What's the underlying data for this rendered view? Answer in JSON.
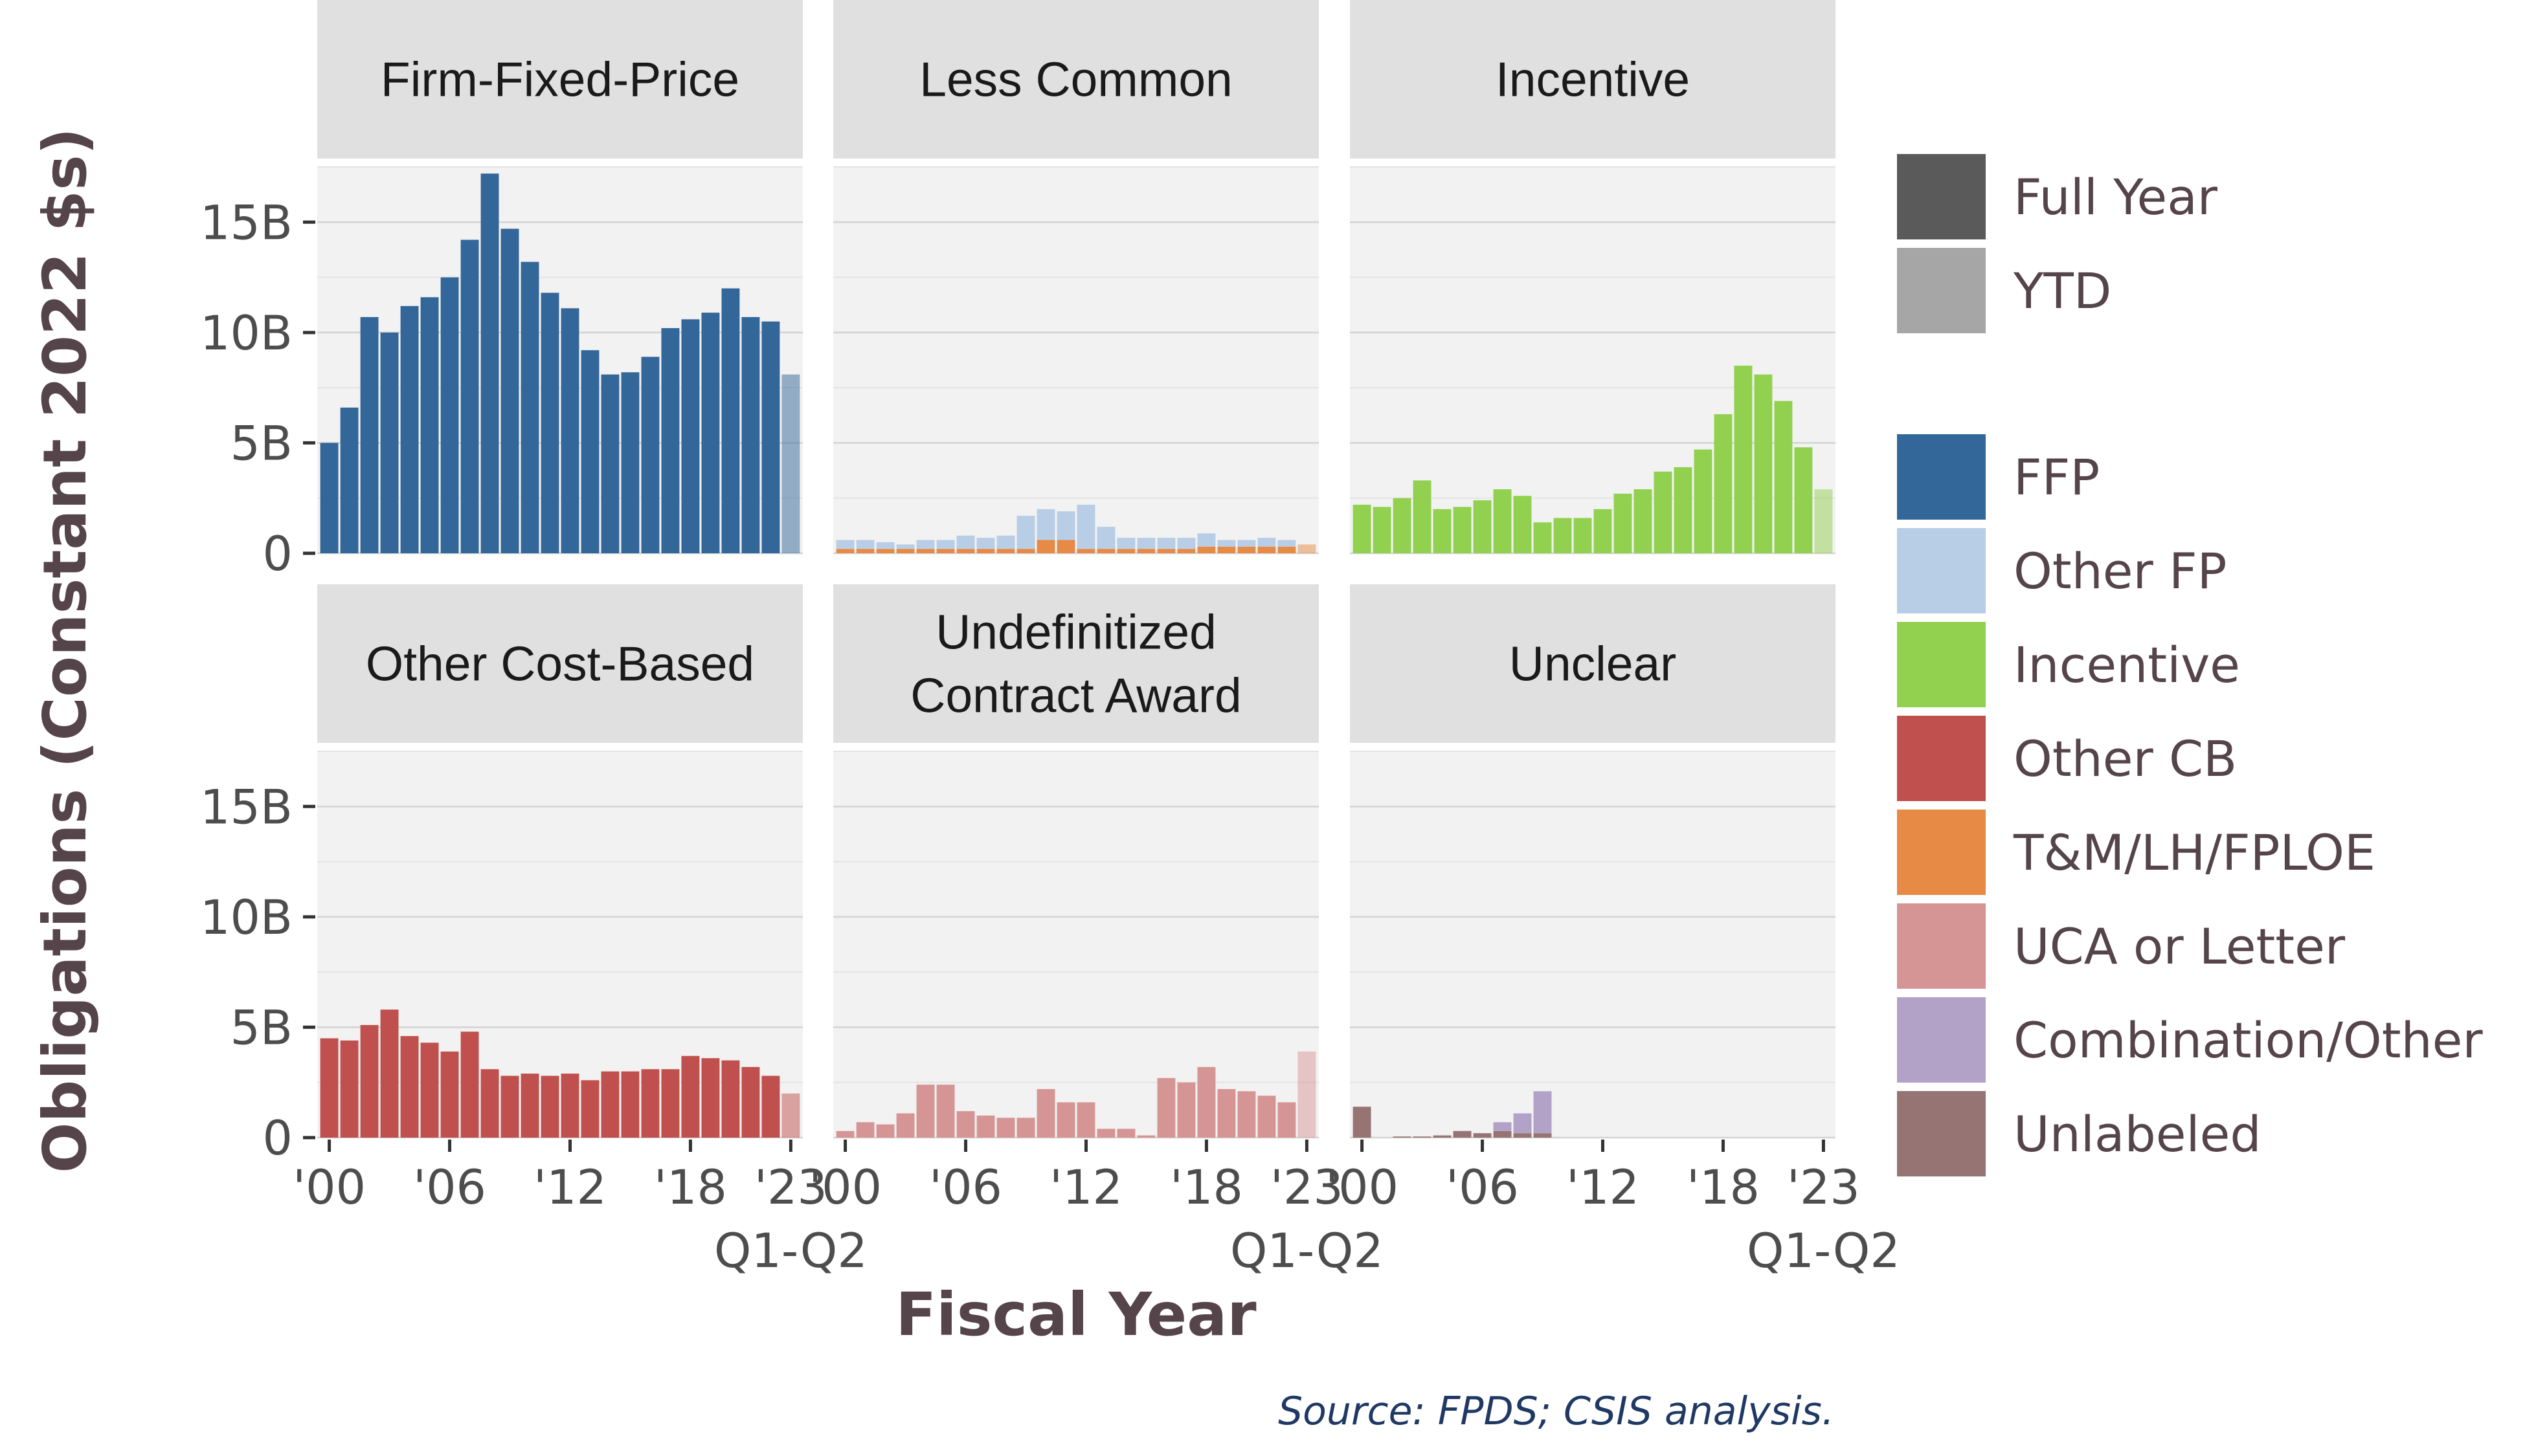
{
  "chart_data": {
    "type": "bar",
    "facet_layout": "2x3",
    "xlabel": "Fiscal Year",
    "ylabel": "Obligations (Constant 2022 $s)",
    "ylim": [
      0,
      17500000000
    ],
    "yticks": [
      0,
      5000000000,
      10000000000,
      15000000000
    ],
    "ytick_labels": [
      "0",
      "5B",
      "10B",
      "15B"
    ],
    "years": [
      2000,
      2001,
      2002,
      2003,
      2004,
      2005,
      2006,
      2007,
      2008,
      2009,
      2010,
      2011,
      2012,
      2013,
      2014,
      2015,
      2016,
      2017,
      2018,
      2019,
      2020,
      2021,
      2022,
      2023
    ],
    "xticks": [
      {
        "year": 2000,
        "label": "'00"
      },
      {
        "year": 2006,
        "label": "'06"
      },
      {
        "year": 2012,
        "label": "'12"
      },
      {
        "year": 2018,
        "label": "'18"
      },
      {
        "year": 2023,
        "label": "'23"
      }
    ],
    "ytd_label": "Q1-Q2",
    "grid": true,
    "legend_position": "right",
    "panels": [
      {
        "title": [
          "Firm-Fixed-Price"
        ],
        "stacks": [
          {
            "series": "FFP",
            "values": [
              5.0,
              6.6,
              10.7,
              10.0,
              11.2,
              11.6,
              12.5,
              14.2,
              17.2,
              14.7,
              13.2,
              11.8,
              11.1,
              9.2,
              8.1,
              8.2,
              8.9,
              10.2,
              10.6,
              10.9,
              12.0,
              10.7,
              10.5,
              8.1
            ]
          }
        ]
      },
      {
        "title": [
          "Less Common"
        ],
        "stacks": [
          {
            "series": "T&M/LH/FPLOE",
            "values": [
              0.2,
              0.2,
              0.2,
              0.2,
              0.2,
              0.2,
              0.2,
              0.2,
              0.2,
              0.2,
              0.6,
              0.6,
              0.2,
              0.2,
              0.2,
              0.2,
              0.2,
              0.2,
              0.3,
              0.3,
              0.3,
              0.3,
              0.3,
              0.4
            ]
          },
          {
            "series": "Other FP",
            "values": [
              0.4,
              0.4,
              0.3,
              0.2,
              0.4,
              0.4,
              0.6,
              0.5,
              0.6,
              1.5,
              1.4,
              1.3,
              2.0,
              1.0,
              0.5,
              0.5,
              0.5,
              0.5,
              0.6,
              0.3,
              0.3,
              0.4,
              0.3,
              0.0
            ]
          }
        ]
      },
      {
        "title": [
          "Incentive"
        ],
        "stacks": [
          {
            "series": "Incentive",
            "values": [
              2.2,
              2.1,
              2.5,
              3.3,
              2.0,
              2.1,
              2.4,
              2.9,
              2.6,
              1.4,
              1.6,
              1.6,
              2.0,
              2.7,
              2.9,
              3.7,
              3.9,
              4.7,
              6.3,
              8.5,
              8.1,
              6.9,
              4.8,
              2.9
            ]
          }
        ]
      },
      {
        "title": [
          "Other Cost-Based"
        ],
        "stacks": [
          {
            "series": "Other CB",
            "values": [
              4.5,
              4.4,
              5.1,
              5.8,
              4.6,
              4.3,
              3.9,
              4.8,
              3.1,
              2.8,
              2.9,
              2.8,
              2.9,
              2.6,
              3.0,
              3.0,
              3.1,
              3.1,
              3.7,
              3.6,
              3.5,
              3.2,
              2.8,
              2.0
            ]
          }
        ]
      },
      {
        "title": [
          "Undefinitized",
          "Contract Award"
        ],
        "stacks": [
          {
            "series": "UCA or Letter",
            "values": [
              0.3,
              0.7,
              0.6,
              1.1,
              2.4,
              2.4,
              1.2,
              1.0,
              0.9,
              0.9,
              2.2,
              1.6,
              1.6,
              0.4,
              0.4,
              0.1,
              2.7,
              2.5,
              3.2,
              2.2,
              2.1,
              1.9,
              1.6,
              3.9
            ]
          }
        ]
      },
      {
        "title": [
          "Unclear"
        ],
        "stacks": [
          {
            "series": "Unlabeled",
            "values": [
              1.4,
              0.0,
              0.05,
              0.05,
              0.1,
              0.3,
              0.2,
              0.3,
              0.2,
              0.2,
              0.0,
              0.0,
              0.0,
              0.0,
              0.0,
              0.0,
              0.0,
              0.0,
              0.0,
              0.0,
              0.0,
              0.0,
              0.0,
              0.0
            ]
          },
          {
            "series": "Combination/Other",
            "values": [
              0.0,
              0.0,
              0.0,
              0.0,
              0.0,
              0.0,
              0.0,
              0.4,
              0.9,
              1.9,
              0.0,
              0.0,
              0.0,
              0.0,
              0.0,
              0.0,
              0.0,
              0.0,
              0.0,
              0.0,
              0.0,
              0.0,
              0.0,
              0.0
            ]
          }
        ]
      }
    ],
    "legend_groups": [
      [
        {
          "name": "Full Year",
          "color": "#5a5a5a"
        },
        {
          "name": "YTD",
          "color": "#a6a6a6"
        }
      ],
      [
        {
          "name": "FFP",
          "color": "#336699"
        },
        {
          "name": "Other FP",
          "color": "#b8cde6"
        },
        {
          "name": "Incentive",
          "color": "#92d050"
        },
        {
          "name": "Other CB",
          "color": "#c0504d"
        },
        {
          "name": "T&M/LH/FPLOE",
          "color": "#e68a45"
        },
        {
          "name": "UCA or Letter",
          "color": "#d69595"
        },
        {
          "name": "Combination/Other",
          "color": "#b3a2c7"
        },
        {
          "name": "Unlabeled",
          "color": "#957473"
        }
      ]
    ],
    "source": "Source: FPDS; CSIS analysis."
  }
}
